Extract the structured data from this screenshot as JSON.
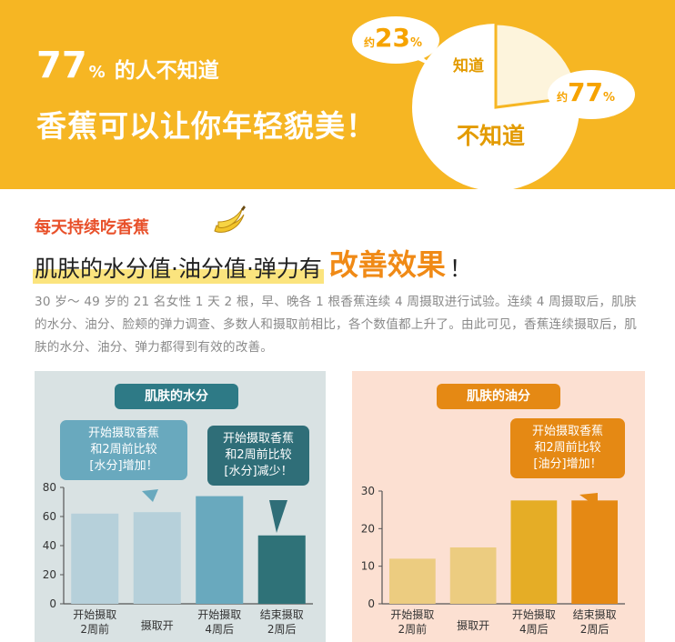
{
  "banner": {
    "stat_number": "77",
    "stat_percent": "%",
    "stat_text": "的人不知道",
    "headline": "香蕉可以让你年轻貌美！",
    "pie_know_label": "知道",
    "pie_dontknow_label": "不知道",
    "bubble_23": {
      "prefix": "约",
      "value": "23",
      "suffix": "%"
    },
    "bubble_77": {
      "prefix": "约",
      "value": "77",
      "suffix": "%"
    }
  },
  "pie_data": {
    "know_percent": 23,
    "dont_know_percent": 77
  },
  "section": {
    "sub_heading": "每天持续吃香蕉",
    "main_heading_part1": "肌肤的水分值·油分值·弹力有",
    "main_heading_highlight": "改善效果",
    "main_heading_part3": "！",
    "paragraph": "30 岁～ 49 岁的 21 名女性 1 天 2 根，早、晚各 1 根香蕉连续 4 周摄取进行试验。连续 4 周摄取后，肌肤的水分、油分、脸颊的弹力调查、多数人和摄取前相比，各个数值都上升了。由此可见，香蕉连续摄取后，肌肤的水分、油分、弹力都得到有效的改善。"
  },
  "panels": {
    "moisture": {
      "title": "肌肤的水分",
      "callout_a": [
        "开始摄取香蕉",
        "和2周前比较",
        "[水分]增加！"
      ],
      "callout_b": [
        "开始摄取香蕉",
        "和2周前比较",
        "[水分]减少！"
      ]
    },
    "oil": {
      "title": "肌肤的油分",
      "callout_c": [
        "开始摄取香蕉",
        "和2周前比较",
        "[油分]增加！"
      ]
    }
  },
  "chart_data": [
    {
      "type": "bar",
      "title": "肌肤的水分",
      "categories": [
        "开始摄取\n2周前",
        "摄取开",
        "开始摄取\n4周后",
        "结束摄取\n2周后"
      ],
      "values": [
        62,
        63,
        74,
        47
      ],
      "ylim": [
        0,
        80
      ],
      "yticks": [
        0,
        20,
        40,
        60,
        80
      ],
      "colors": [
        "#b6d0da",
        "#b6d0da",
        "#69a9be",
        "#2f7278"
      ],
      "grid": false
    },
    {
      "type": "bar",
      "title": "肌肤的油分",
      "categories": [
        "开始摄取\n2周前",
        "摄取开",
        "开始摄取\n4周后",
        "结束摄取\n2周后"
      ],
      "values": [
        12,
        15,
        27.5,
        27.5
      ],
      "ylim": [
        0,
        30
      ],
      "yticks": [
        0,
        10,
        20,
        30
      ],
      "colors": [
        "#eccc80",
        "#eccc80",
        "#e5ad26",
        "#e58914"
      ],
      "grid": false
    }
  ]
}
